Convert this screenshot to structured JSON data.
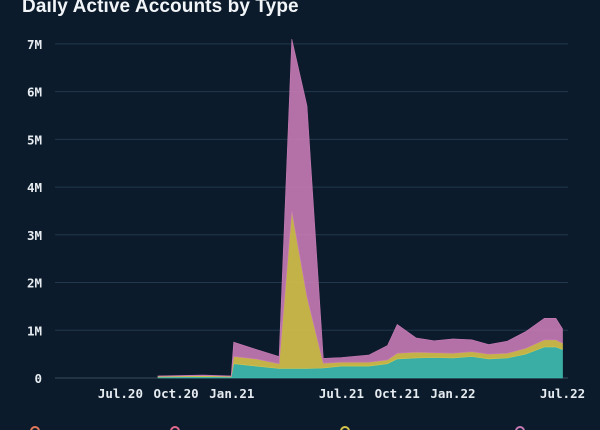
{
  "chart_data": {
    "type": "area",
    "title": "Daily Active Accounts by Type",
    "xlabel": "",
    "ylabel": "",
    "ylim": [
      0,
      7500000
    ],
    "y_ticks": [
      {
        "value": 0,
        "label": "0"
      },
      {
        "value": 1000000,
        "label": "1M"
      },
      {
        "value": 2000000,
        "label": "2M"
      },
      {
        "value": 3000000,
        "label": "3M"
      },
      {
        "value": 4000000,
        "label": "4M"
      },
      {
        "value": 5000000,
        "label": "5M"
      },
      {
        "value": 6000000,
        "label": "6M"
      },
      {
        "value": 7000000,
        "label": "7M"
      }
    ],
    "x_ticks": [
      {
        "date": "2020-07-01",
        "label": "Jul.20"
      },
      {
        "date": "2020-10-01",
        "label": "Oct.20"
      },
      {
        "date": "2021-01-01",
        "label": "Jan.21"
      },
      {
        "date": "2021-07-01",
        "label": "Jul.21"
      },
      {
        "date": "2021-10-01",
        "label": "Oct.21"
      },
      {
        "date": "2022-01-01",
        "label": "Jan.22"
      },
      {
        "date": "2022-07-01",
        "label": "Jul.22"
      }
    ],
    "grid": true,
    "stacked": true,
    "series": [
      {
        "color": "#3fbfb3",
        "dates": [
          "2020-09-01",
          "2020-11-15",
          "2020-12-31",
          "2021-01-04",
          "2021-02-10",
          "2021-03-20",
          "2021-04-10",
          "2021-05-05",
          "2021-06-01",
          "2021-07-01",
          "2021-08-15",
          "2021-09-15",
          "2021-10-01",
          "2021-11-01",
          "2021-12-01",
          "2022-01-01",
          "2022-02-01",
          "2022-03-01",
          "2022-04-01",
          "2022-05-01",
          "2022-06-01",
          "2022-06-20",
          "2022-07-01"
        ],
        "values": [
          20000,
          30000,
          20000,
          300000,
          250000,
          200000,
          200000,
          200000,
          210000,
          250000,
          250000,
          300000,
          400000,
          420000,
          430000,
          420000,
          450000,
          400000,
          420000,
          500000,
          650000,
          650000,
          600000
        ]
      },
      {
        "color": "#d6c34a",
        "dates": [
          "2020-09-01",
          "2020-11-15",
          "2020-12-31",
          "2021-01-04",
          "2021-02-10",
          "2021-03-20",
          "2021-04-10",
          "2021-05-05",
          "2021-06-01",
          "2021-07-01",
          "2021-08-15",
          "2021-09-15",
          "2021-10-01",
          "2021-11-01",
          "2021-12-01",
          "2022-01-01",
          "2022-02-01",
          "2022-03-01",
          "2022-04-01",
          "2022-05-01",
          "2022-06-01",
          "2022-06-20",
          "2022-07-01"
        ],
        "values": [
          15000,
          20000,
          15000,
          150000,
          150000,
          100000,
          3300000,
          1500000,
          100000,
          80000,
          80000,
          80000,
          120000,
          120000,
          100000,
          100000,
          100000,
          100000,
          100000,
          120000,
          150000,
          150000,
          130000
        ]
      },
      {
        "color": "#c77bb5",
        "dates": [
          "2020-09-01",
          "2020-11-15",
          "2020-12-31",
          "2021-01-04",
          "2021-02-10",
          "2021-03-20",
          "2021-04-10",
          "2021-05-05",
          "2021-06-01",
          "2021-07-01",
          "2021-08-15",
          "2021-09-15",
          "2021-10-01",
          "2021-11-01",
          "2021-12-01",
          "2022-01-01",
          "2022-02-01",
          "2022-03-01",
          "2022-04-01",
          "2022-05-01",
          "2022-06-01",
          "2022-06-20",
          "2022-07-01"
        ],
        "values": [
          10000,
          10000,
          10000,
          300000,
          200000,
          150000,
          3600000,
          4000000,
          100000,
          100000,
          150000,
          300000,
          600000,
          300000,
          250000,
          300000,
          250000,
          200000,
          250000,
          350000,
          450000,
          450000,
          300000
        ]
      }
    ]
  }
}
